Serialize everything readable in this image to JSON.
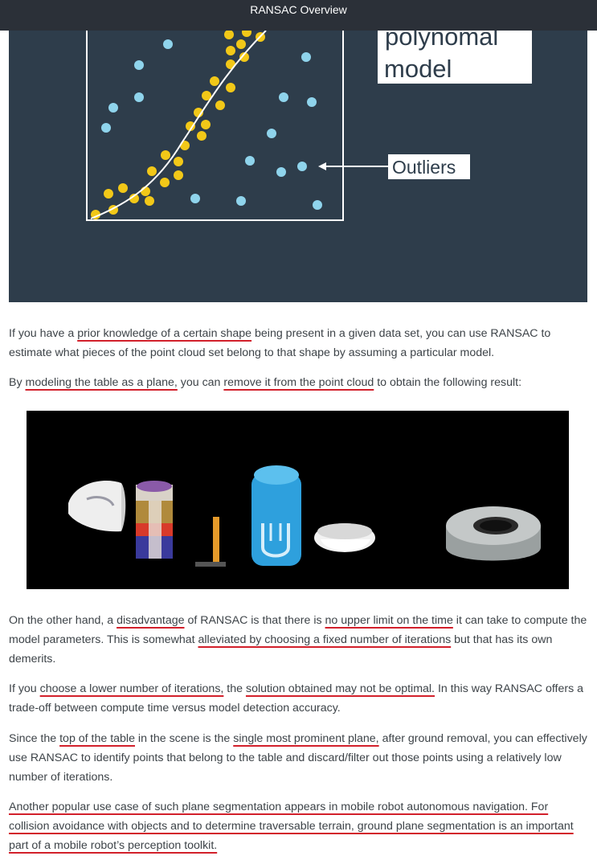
{
  "header": {
    "title": "RANSAC Overview"
  },
  "figure1": {
    "label_model_line1": "polynomal",
    "label_model_line2": "model",
    "label_outliers": "Outliers",
    "colors": {
      "background": "#2e3d4b",
      "inlier": "#f2c818",
      "outlier": "#8fd4ec",
      "curve": "#ffffff"
    }
  },
  "figure2": {
    "description_icons": [
      "bowl-shape",
      "soda-can-shape",
      "hammer-shape",
      "cylinder-can-shape",
      "dish-shape",
      "flange-shape"
    ]
  },
  "content": {
    "p1": {
      "t1": "If you have a ",
      "u1": "prior knowledge of a certain shape",
      "t2": " being present in a given data set, you can use RANSAC to estimate what pieces of the point cloud set belong to that shape by assuming a particular model."
    },
    "p2": {
      "t1": "By ",
      "u1": "modeling the table as a plane,",
      "t2": " you can ",
      "u2": "remove it from the point cloud",
      "t3": " to obtain the following result:"
    },
    "p3": {
      "t1": "On the other hand, a ",
      "u1": "disadvantage",
      "t2": " of RANSAC is that there is ",
      "u2": "no upper limit on the time",
      "t3": " it can take to compute the model parameters. This is somewhat ",
      "u3": "alleviated by choosing a fixed number of iterations",
      "t4": " but that has its own demerits."
    },
    "p4": {
      "t1": "If you ",
      "u1": "choose a lower number of iterations,",
      "t2": " the ",
      "u2": "solution obtained may not be optimal.",
      "t3": " In this way RANSAC offers a trade-off between compute time versus model detection accuracy."
    },
    "p5": {
      "t1": "Since the ",
      "u1": "top of the table",
      "t2": " in the scene is the ",
      "u2": "single most prominent plane,",
      "t3": " after ground removal, you can effectively use RANSAC to identify points that belong to the table and discard/filter out those points using a relatively low number of iterations."
    },
    "p6": {
      "u1": "Another popular use case of such plane segmentation appears in mobile robot autonomous navigation. For collision avoidance with objects and to determine traversable terrain, ground plane segmentation is an important part of a mobile robot’s perception toolkit."
    }
  }
}
